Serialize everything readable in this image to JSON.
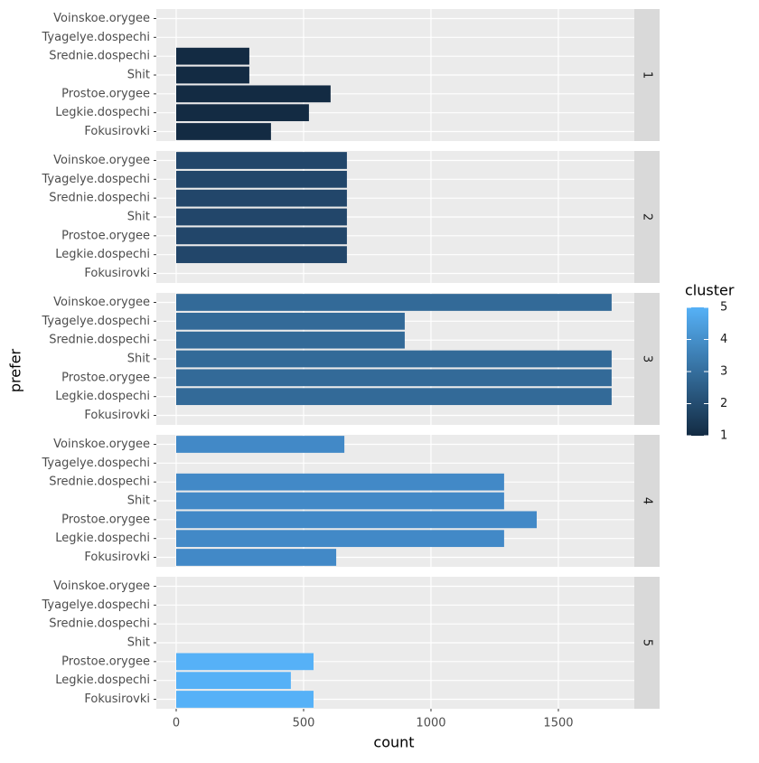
{
  "chart_data": {
    "type": "bar",
    "orientation": "horizontal",
    "x_label": "count",
    "y_label": "prefer",
    "categories": [
      "Voinskoe.orygee",
      "Tyagelye.dospechi",
      "Srednie.dospechi",
      "Shit",
      "Prostoe.orygee",
      "Legkie.dospechi",
      "Fokusirovki"
    ],
    "xlim": [
      -78,
      1798
    ],
    "xticks": [
      0,
      500,
      1000,
      1500
    ],
    "grid": true,
    "facets": [
      {
        "label": "1",
        "color": "#132b43",
        "values": [
          null,
          null,
          287,
          287,
          606,
          521,
          372
        ]
      },
      {
        "label": "2",
        "color": "#22466a",
        "values": [
          670,
          670,
          670,
          670,
          670,
          670,
          null
        ]
      },
      {
        "label": "3",
        "color": "#336a98",
        "values": [
          1709,
          897,
          897,
          1709,
          1709,
          1709,
          null
        ]
      },
      {
        "label": "4",
        "color": "#4289c7",
        "values": [
          660,
          null,
          1287,
          1287,
          1415,
          1287,
          628
        ]
      },
      {
        "label": "5",
        "color": "#56b1f7",
        "values": [
          null,
          null,
          null,
          null,
          539,
          450,
          539
        ]
      }
    ],
    "legend": {
      "title": "cluster",
      "ticks": [
        1,
        2,
        3,
        4,
        5
      ],
      "low_color": "#132b43",
      "high_color": "#56b1f7"
    }
  }
}
